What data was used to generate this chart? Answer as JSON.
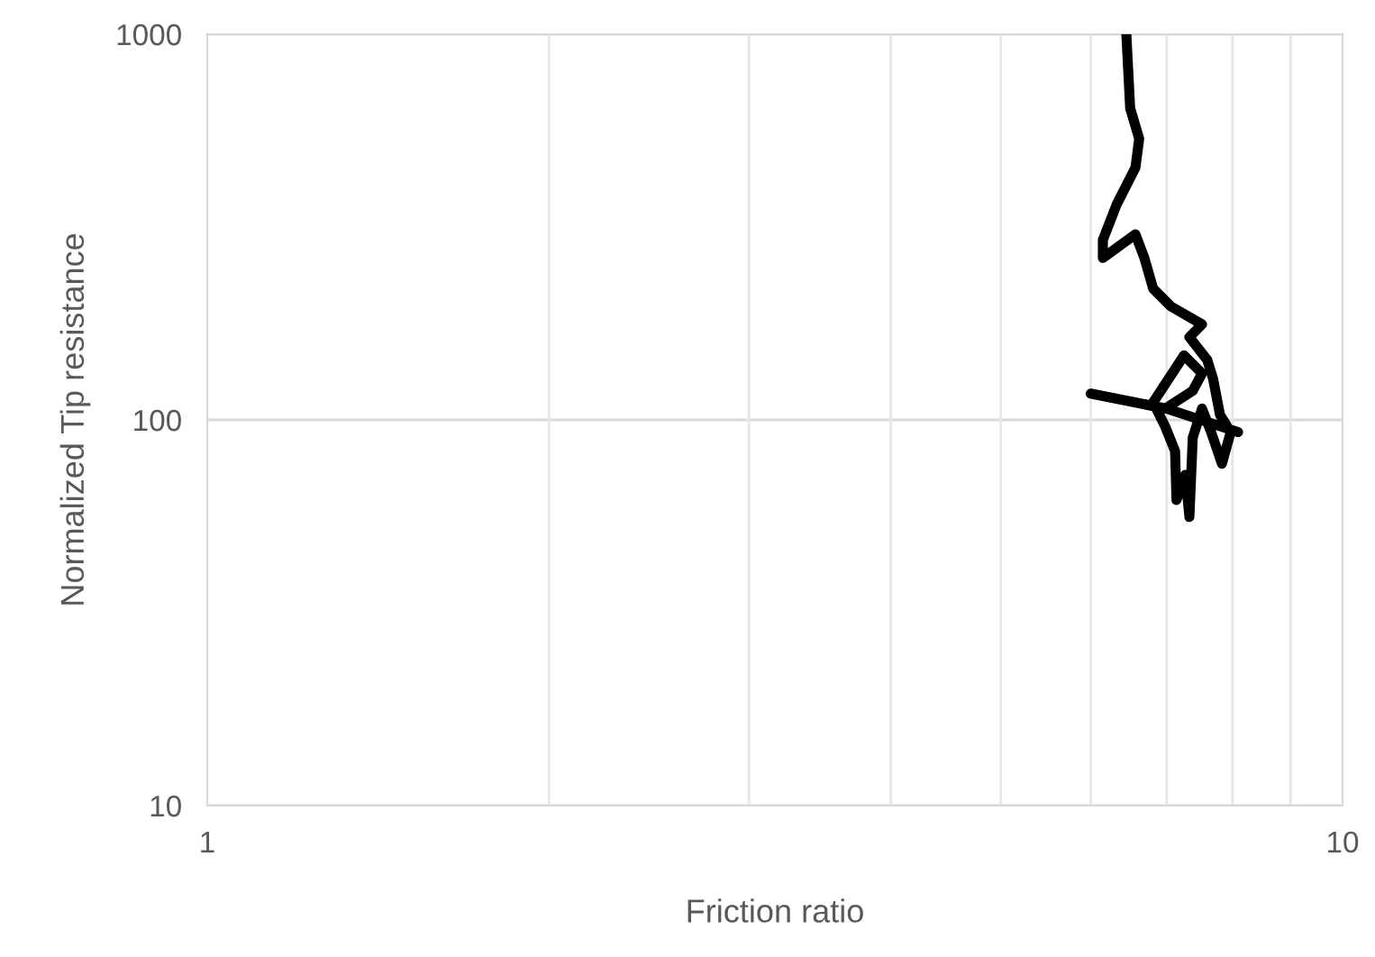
{
  "chart_data": {
    "type": "line",
    "xlabel": "Friction ratio",
    "ylabel": "Normalized Tip resistance",
    "log": "xy",
    "xlim": [
      1,
      10
    ],
    "ylim": [
      10,
      1000
    ],
    "xticks": [
      1,
      10
    ],
    "yticks": [
      10,
      100,
      1000
    ],
    "grid": true,
    "marker": "none",
    "line_style": "solid",
    "series": [
      {
        "color": "#000000",
        "x": [
          6.45,
          6.5,
          6.62,
          6.57,
          6.33,
          6.15,
          6.15,
          6.57,
          6.69,
          6.81,
          7.06,
          7.52,
          7.33,
          7.6,
          7.69,
          7.8,
          7.97,
          7.83,
          7.66,
          7.52,
          7.38,
          7.33,
          7.27,
          7.14,
          7.12,
          6.98,
          6.81,
          7.25,
          7.52,
          7.38,
          6.98,
          6.0,
          7.0,
          8.09
        ],
        "values": [
          1000,
          643,
          536,
          451,
          364,
          293,
          263,
          303,
          263,
          219,
          197,
          177,
          164,
          143,
          128,
          103,
          93,
          77,
          93,
          107,
          90,
          56,
          72,
          62,
          83,
          96,
          111,
          147,
          132,
          119,
          107,
          117,
          107,
          93
        ]
      }
    ]
  }
}
